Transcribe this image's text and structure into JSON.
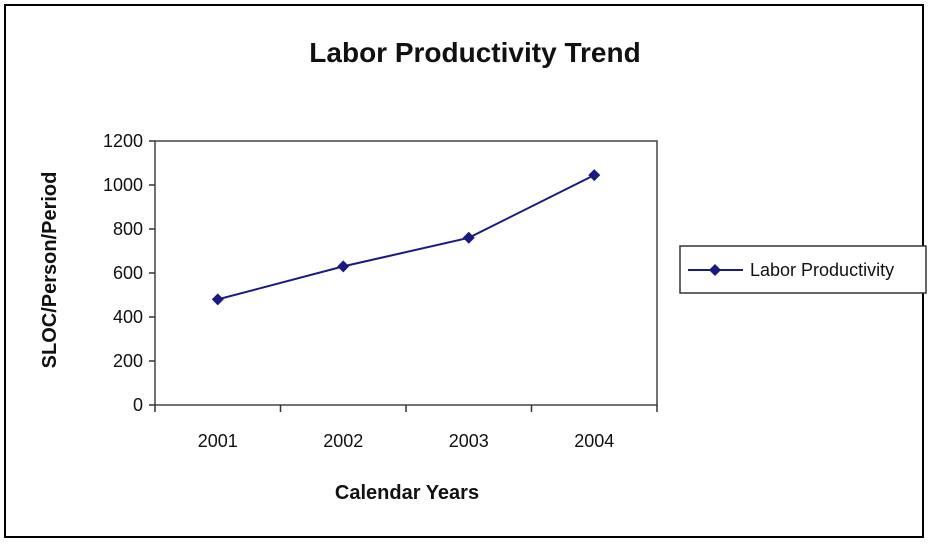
{
  "chart_data": {
    "type": "line",
    "title": "Labor Productivity Trend",
    "xlabel": "Calendar Years",
    "ylabel": "SLOC/Person/Period",
    "categories": [
      "2001",
      "2002",
      "2003",
      "2004"
    ],
    "series": [
      {
        "name": "Labor Productivity",
        "values": [
          480,
          630,
          760,
          1045
        ],
        "color": "#1a1a80",
        "marker": "diamond"
      }
    ],
    "ylim": [
      0,
      1200
    ],
    "yticks": [
      0,
      200,
      400,
      600,
      800,
      1000,
      1200
    ],
    "grid": false,
    "legend_position": "right"
  }
}
